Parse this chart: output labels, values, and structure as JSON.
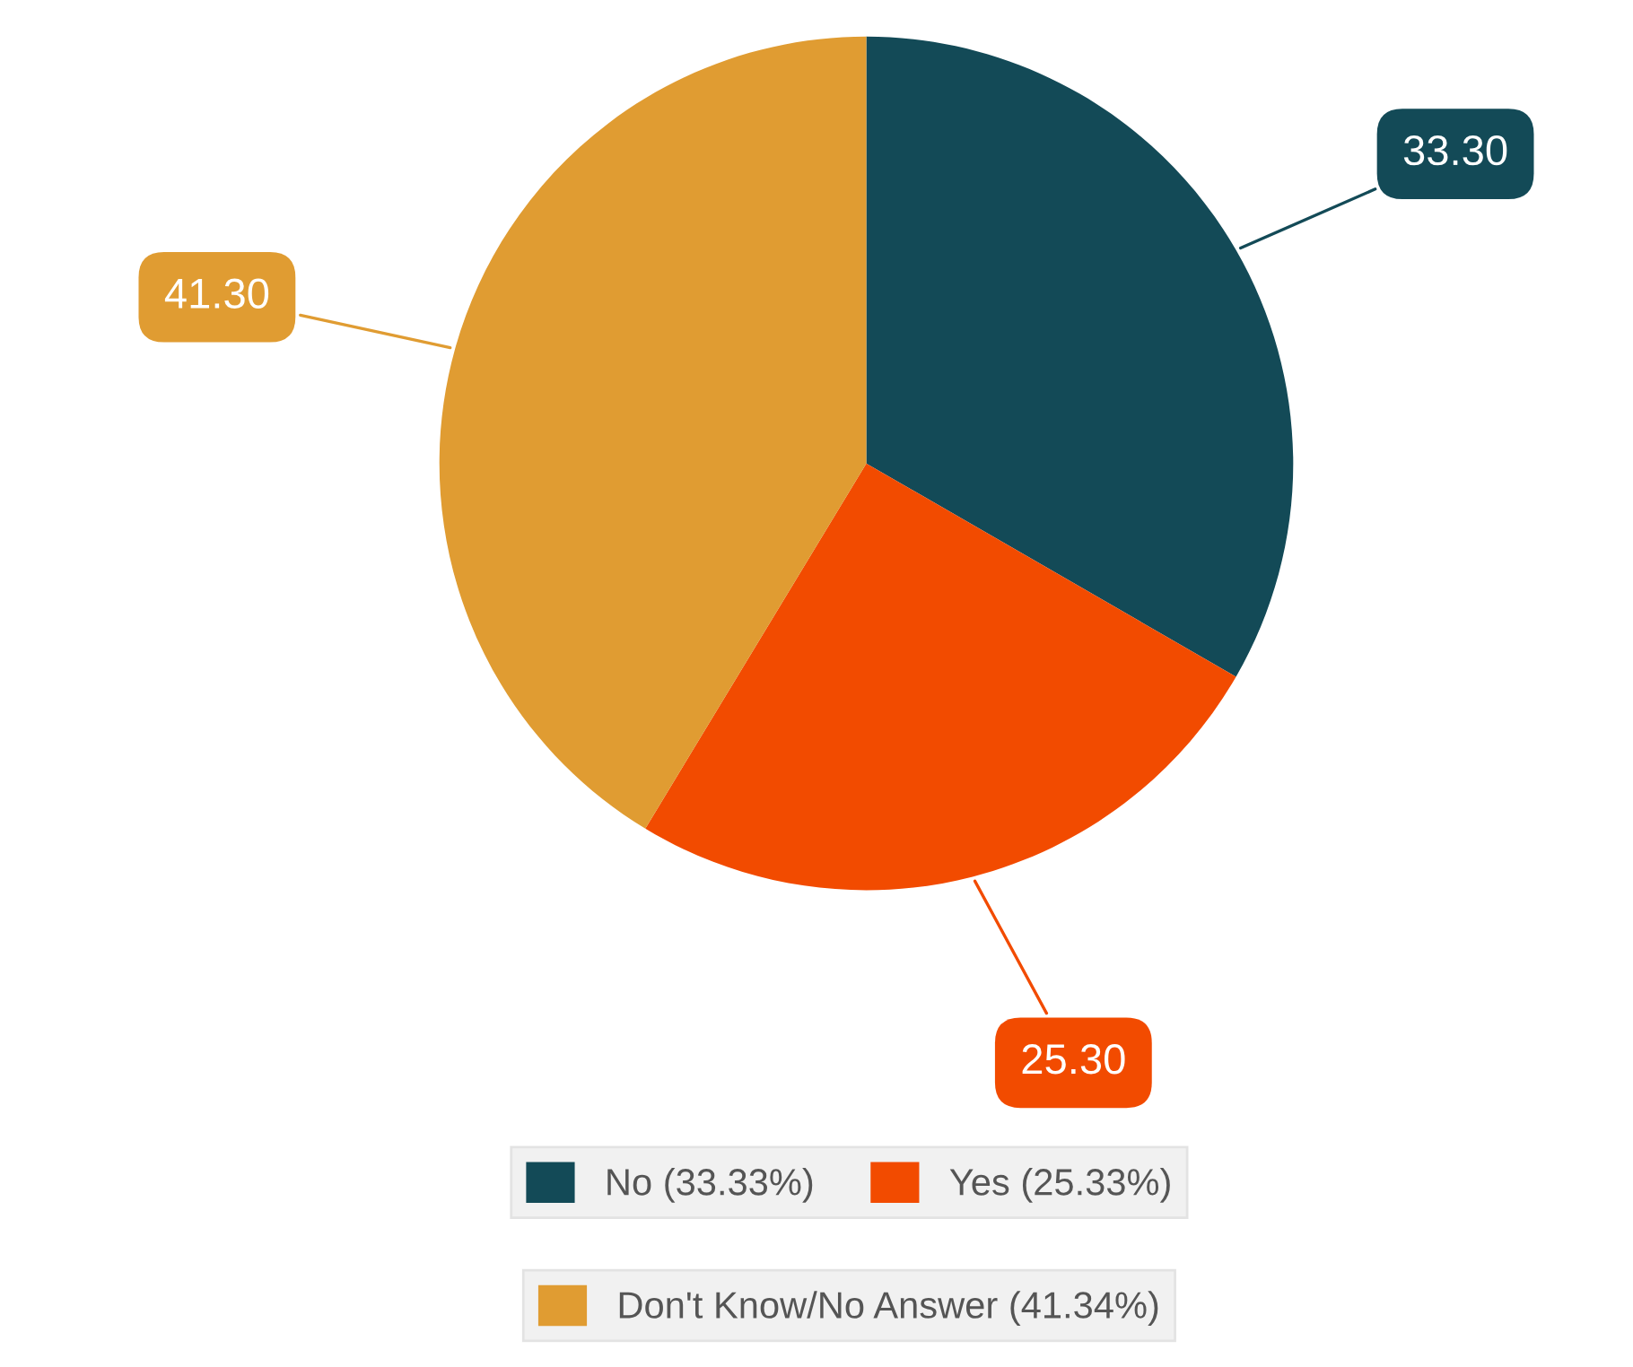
{
  "chart_data": {
    "type": "pie",
    "categories": [
      "No (33.33%)",
      "Yes (25.33%)",
      "Don't Know/No Answer (41.34%)"
    ],
    "values": [
      33.3,
      25.3,
      41.3
    ],
    "value_labels": [
      "33.30",
      "25.30",
      "41.30"
    ],
    "colors": [
      "#134a57",
      "#f24b00",
      "#e09c32"
    ],
    "legend": "bottom"
  }
}
